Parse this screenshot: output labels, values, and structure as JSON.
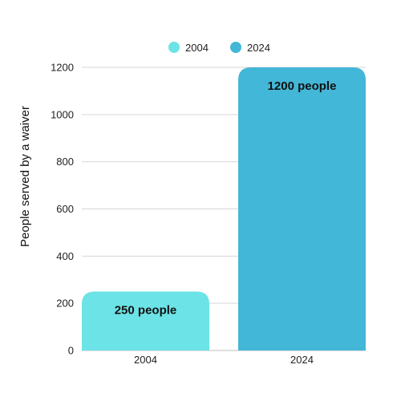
{
  "chart_data": {
    "type": "bar",
    "categories": [
      "2004",
      "2024"
    ],
    "values": [
      250,
      1200
    ],
    "data_labels": [
      "250 people",
      "1200 people"
    ],
    "colors": [
      "#6ce3e6",
      "#43b7d7"
    ],
    "ylabel": "People served by a waiver",
    "ylim": [
      0,
      1200
    ],
    "yticks": [
      0,
      200,
      400,
      600,
      800,
      1000,
      1200
    ],
    "grid": true,
    "legend": {
      "placement": "top-center",
      "entries": [
        {
          "label": "2004",
          "color": "#6ce3e6"
        },
        {
          "label": "2024",
          "color": "#43b7d7"
        }
      ]
    }
  }
}
